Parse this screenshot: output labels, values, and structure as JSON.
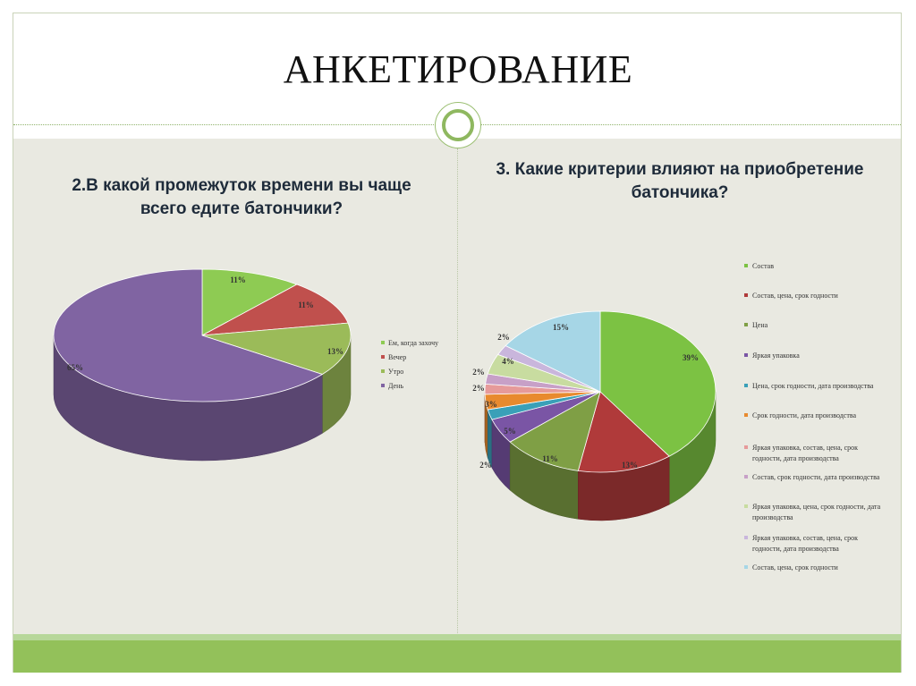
{
  "slide": {
    "title": "АНКЕТИРОВАНИЕ"
  },
  "chart_data": [
    {
      "type": "pie",
      "title": "2.В какой промежуток времени вы чаще всего едите батончики?",
      "categories": [
        "Ем, когда захочу",
        "Вечер",
        "Утро",
        "День"
      ],
      "values": [
        11,
        11,
        13,
        65
      ],
      "labels": [
        "11%",
        "11%",
        "13%",
        "65%"
      ],
      "colors": [
        "#8ecb53",
        "#c0504d",
        "#9bbb59",
        "#8064a2"
      ],
      "legend": "right",
      "3d": true
    },
    {
      "type": "pie",
      "title": "3. Какие критерии влияют на приобретение батончика?",
      "categories": [
        "Состав",
        "Состав, цена, срок годности",
        "Цена",
        "Яркая упаковка",
        "Цена, срок годности, дата производства",
        "Срок годности, дата производства",
        "Яркая упаковка, состав, цена, срок годности, дата производства",
        "Состав, срок годности, дата производства",
        "Яркая упаковка, цена, срок годности, дата производства",
        "Яркая упаковка, состав, цена, срок годности, дата производства",
        "Состав, цена, срок годности"
      ],
      "values": [
        39,
        13,
        11,
        5,
        2,
        3,
        2,
        2,
        4,
        2,
        15
      ],
      "labels": [
        "39%",
        "13%",
        "11%",
        "5%",
        "2%",
        "3%",
        "2%",
        "2%",
        "4%",
        "2%",
        "15%"
      ],
      "colors": [
        "#7cc243",
        "#b03a3a",
        "#7f9f45",
        "#7a55a5",
        "#3aa0b8",
        "#e88a2e",
        "#e69a9a",
        "#c7a0c7",
        "#c8dca0",
        "#c9b6dc",
        "#a6d6e6"
      ],
      "legend": "right",
      "3d": true
    }
  ]
}
